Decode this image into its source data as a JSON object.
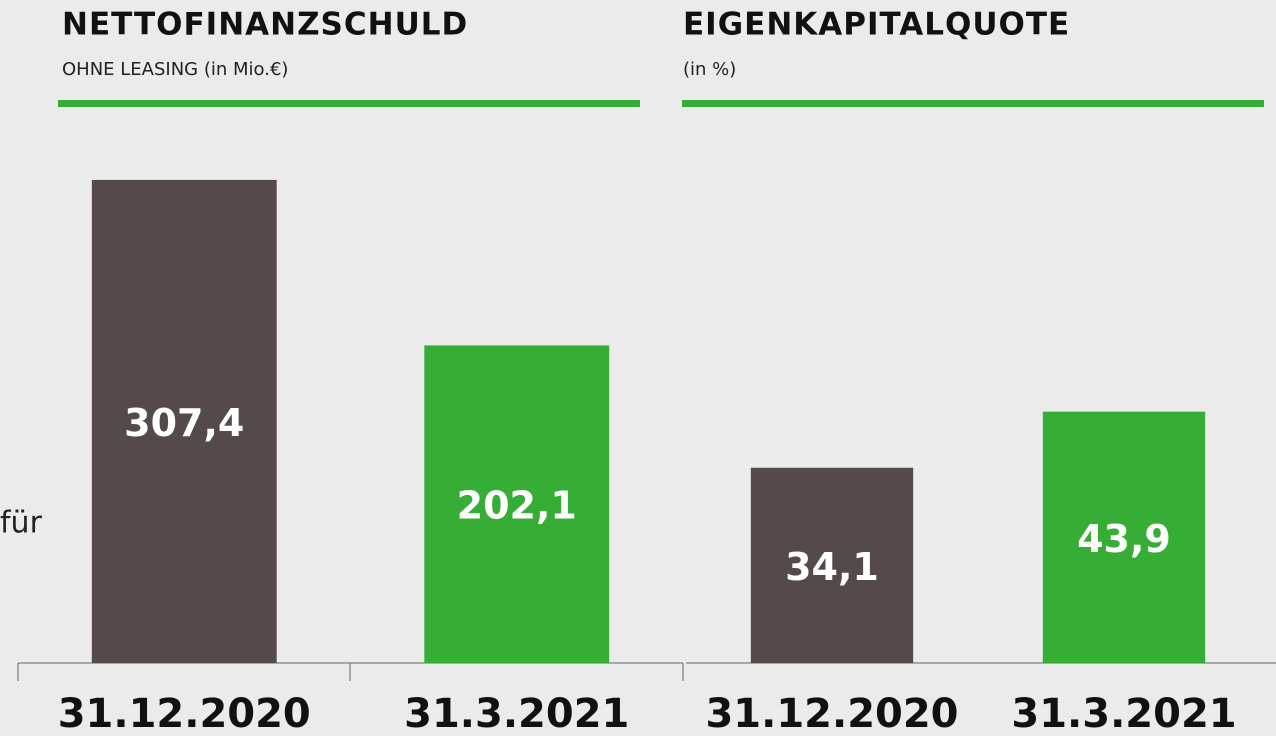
{
  "chart_data": [
    {
      "type": "bar",
      "title": "NETTOFINANZSCHULD",
      "subtitle": "OHNE LEASING (in Mio.€)",
      "categories": [
        "31.12.2020",
        "31.3.2021"
      ],
      "values": [
        307.4,
        202.1
      ],
      "value_labels": [
        "307,4",
        "202,1"
      ],
      "colors": [
        "#554a4a",
        "#36ad35"
      ],
      "ylim": [
        0,
        350
      ],
      "annotations": [
        "für"
      ]
    },
    {
      "type": "bar",
      "title": "EIGENKAPITALQUOTE",
      "subtitle": "(in %)",
      "categories": [
        "31.12.2020",
        "31.3.2021"
      ],
      "values": [
        34.1,
        43.9
      ],
      "value_labels": [
        "34,1",
        "43,9"
      ],
      "colors": [
        "#554a4a",
        "#36ad35"
      ],
      "ylim": [
        0,
        80
      ]
    }
  ]
}
